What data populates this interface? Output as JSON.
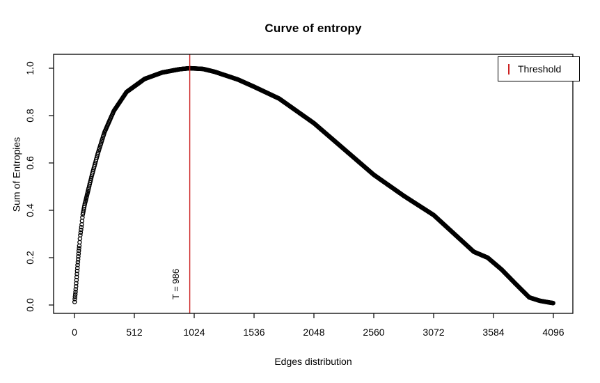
{
  "chart_data": {
    "type": "scatter",
    "marker": "open-circle",
    "point_color": "#000000",
    "title": "Curve of entropy",
    "xlabel": "Edges distribution",
    "ylabel": "Sum of Entropies",
    "xlim": [
      0,
      4096
    ],
    "ylim": [
      0.0,
      1.0
    ],
    "grid": false,
    "x_ticks": [
      0,
      512,
      1024,
      1536,
      2048,
      2560,
      3072,
      3584,
      4096
    ],
    "y_ticks": [
      "0.0",
      "0.2",
      "0.4",
      "0.6",
      "0.8",
      "1.0"
    ],
    "threshold": {
      "value": 986,
      "label": "T = 986",
      "color": "#CC2222"
    },
    "legend": {
      "position": "top-right",
      "entries": [
        {
          "label": "Threshold",
          "marker": "vertical-line",
          "color": "#CC2222"
        }
      ]
    },
    "curve_points": [
      [
        1,
        0.013
      ],
      [
        2,
        0.02
      ],
      [
        4,
        0.03
      ],
      [
        7,
        0.045
      ],
      [
        10,
        0.06
      ],
      [
        14,
        0.085
      ],
      [
        20,
        0.125
      ],
      [
        28,
        0.175
      ],
      [
        38,
        0.235
      ],
      [
        50,
        0.295
      ],
      [
        62,
        0.34
      ],
      [
        70,
        0.38
      ],
      [
        90,
        0.43
      ],
      [
        110,
        0.47
      ],
      [
        150,
        0.55
      ],
      [
        200,
        0.64
      ],
      [
        257,
        0.73
      ],
      [
        337,
        0.82
      ],
      [
        446,
        0.9
      ],
      [
        600,
        0.955
      ],
      [
        750,
        0.982
      ],
      [
        900,
        0.996
      ],
      [
        986,
        1.0
      ],
      [
        1100,
        0.997
      ],
      [
        1200,
        0.985
      ],
      [
        1400,
        0.952
      ],
      [
        1544,
        0.92
      ],
      [
        1750,
        0.872
      ],
      [
        2048,
        0.768
      ],
      [
        2290,
        0.665
      ],
      [
        2560,
        0.55
      ],
      [
        2820,
        0.46
      ],
      [
        3072,
        0.38
      ],
      [
        3300,
        0.277
      ],
      [
        3415,
        0.225
      ],
      [
        3534,
        0.2
      ],
      [
        3653,
        0.15
      ],
      [
        3772,
        0.09
      ],
      [
        3890,
        0.032
      ],
      [
        3979,
        0.018
      ],
      [
        4068,
        0.01
      ],
      [
        4096,
        0.008
      ]
    ]
  }
}
